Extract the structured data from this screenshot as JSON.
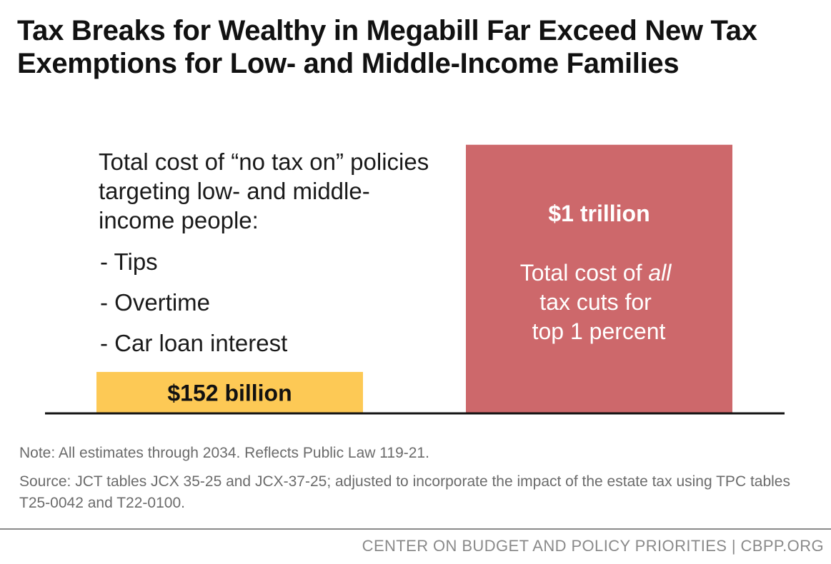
{
  "title": "Tax Breaks for Wealthy in Megabill Far Exceed New Tax Exemptions for Low- and Middle-Income Families",
  "left_description": "Total cost of “no tax on” policies targeting low- and middle-income people:",
  "left_items": [
    "- Tips",
    "- Overtime",
    "- Car loan interest"
  ],
  "right_description_lines": [
    "Total cost of",
    "all",
    "tax cuts for",
    "top 1 percent"
  ],
  "note": "Note: All estimates through 2034. Reflects Public Law 119-21.",
  "source": "Source: JCT tables JCX 35-25 and JCX-37-25; adjusted to incorporate the impact of the estate tax using TPC tables T25-0042 and T22-0100.",
  "footer": "CENTER ON BUDGET AND POLICY PRIORITIES | CBPP.ORG",
  "colors": {
    "low_middle_bar": "#fdc955",
    "top1_bar": "#cd686b",
    "baseline": "#111111",
    "muted_text": "#6b6b6b"
  },
  "chart_data": {
    "type": "bar",
    "title": "Tax Breaks for Wealthy in Megabill Far Exceed New Tax Exemptions for Low- and Middle-Income Families",
    "categories": [
      "No tax on tips, overtime, car loan interest",
      "All tax cuts for top 1 percent"
    ],
    "values": [
      152,
      1000
    ],
    "units": "billions of dollars",
    "data_labels": [
      "$152 billion",
      "$1 trillion"
    ],
    "ylim": [
      0,
      1050
    ],
    "xlabel": "",
    "ylabel": "",
    "grid": false
  }
}
